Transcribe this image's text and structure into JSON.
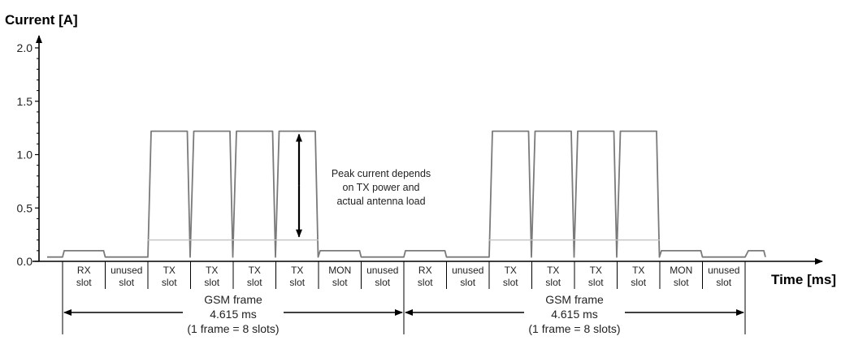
{
  "chart_data": {
    "type": "line",
    "ylabel": "Current [A]",
    "xlabel": "Time [ms]",
    "ylim": [
      0,
      2.0
    ],
    "y_ticks": [
      "0.0",
      "0.5",
      "1.0",
      "1.5",
      "2.0"
    ],
    "grid": false,
    "slots": [
      {
        "top": "RX",
        "bottom": "slot"
      },
      {
        "top": "unused",
        "bottom": "slot"
      },
      {
        "top": "TX",
        "bottom": "slot"
      },
      {
        "top": "TX",
        "bottom": "slot"
      },
      {
        "top": "TX",
        "bottom": "slot"
      },
      {
        "top": "TX",
        "bottom": "slot"
      },
      {
        "top": "MON",
        "bottom": "slot"
      },
      {
        "top": "unused",
        "bottom": "slot"
      },
      {
        "top": "RX",
        "bottom": "slot"
      },
      {
        "top": "unused",
        "bottom": "slot"
      },
      {
        "top": "TX",
        "bottom": "slot"
      },
      {
        "top": "TX",
        "bottom": "slot"
      },
      {
        "top": "TX",
        "bottom": "slot"
      },
      {
        "top": "TX",
        "bottom": "slot"
      },
      {
        "top": "MON",
        "bottom": "slot"
      },
      {
        "top": "unused",
        "bottom": "slot"
      }
    ],
    "series": [
      {
        "slot_current_a": [
          0.1,
          0.04,
          1.22,
          1.22,
          1.22,
          1.22,
          0.1,
          0.04,
          0.1,
          0.04,
          1.22,
          1.22,
          1.22,
          1.22,
          0.1,
          0.04
        ]
      },
      {
        "slot_current_a": [
          null,
          null,
          0.2,
          0.2,
          0.2,
          0.2,
          null,
          null,
          null,
          null,
          0.2,
          0.2,
          0.2,
          0.2,
          null,
          null
        ]
      }
    ],
    "baseline_current_a": 0.04,
    "frames": [
      {
        "label": "GSM frame",
        "duration": "4.615 ms",
        "note": "(1 frame = 8 slots)"
      },
      {
        "label": "GSM frame",
        "duration": "4.615 ms",
        "note": "(1 frame = 8 slots)"
      }
    ],
    "annotation": {
      "lines": [
        "Peak current depends",
        "on TX power and",
        "actual antenna load"
      ],
      "from_a": 0.2,
      "to_a": 1.22
    }
  }
}
